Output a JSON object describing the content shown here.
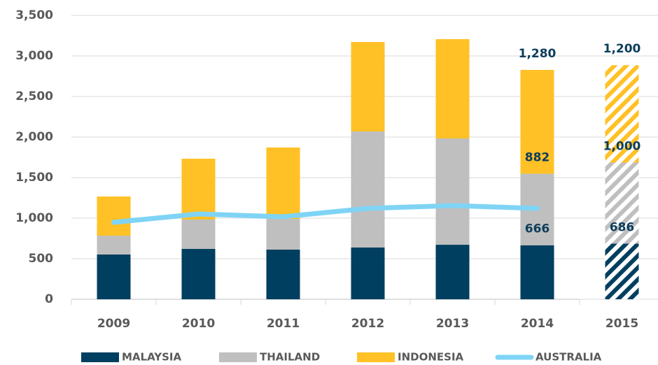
{
  "chart_data": {
    "type": "bar",
    "stacked": true,
    "categories": [
      "2009",
      "2010",
      "2011",
      "2012",
      "2013",
      "2014",
      "2015"
    ],
    "hatched": [
      false,
      false,
      false,
      false,
      false,
      false,
      true
    ],
    "series": [
      {
        "name": "MALAYSIA",
        "type": "bar",
        "color": "#003f5f",
        "values": [
          552,
          621,
          612,
          638,
          672,
          666,
          686
        ],
        "value_labels": [
          null,
          null,
          null,
          null,
          null,
          "666",
          "686"
        ]
      },
      {
        "name": "THAILAND",
        "type": "bar",
        "color": "#bfbfbf",
        "values": [
          232,
          362,
          379,
          1431,
          1311,
          882,
          1000
        ],
        "value_labels": [
          null,
          null,
          null,
          null,
          null,
          "882",
          "1,000"
        ]
      },
      {
        "name": "INDONESIA",
        "type": "bar",
        "color": "#ffc125",
        "values": [
          483,
          750,
          880,
          1103,
          1224,
          1280,
          1200
        ],
        "value_labels": [
          null,
          null,
          null,
          null,
          null,
          "1,280",
          "1,200"
        ]
      },
      {
        "name": "AUSTRALIA",
        "type": "line",
        "color": "#7fd4f5",
        "values": [
          948,
          1052,
          1017,
          1121,
          1155,
          1121,
          null
        ]
      }
    ],
    "ylim": [
      0,
      3500
    ],
    "yticks": [
      0,
      {
        "value": 500,
        "label": "500"
      },
      {
        "value": 1000,
        "label": "1,000"
      },
      {
        "value": 1500,
        "label": "1,500"
      },
      {
        "value": 2000,
        "label": "2,000"
      },
      {
        "value": 2500,
        "label": "2,500"
      },
      {
        "value": 3000,
        "label": "3,000"
      },
      {
        "value": 3500,
        "label": "3,500"
      }
    ],
    "grid": true,
    "legend": "bottom"
  }
}
